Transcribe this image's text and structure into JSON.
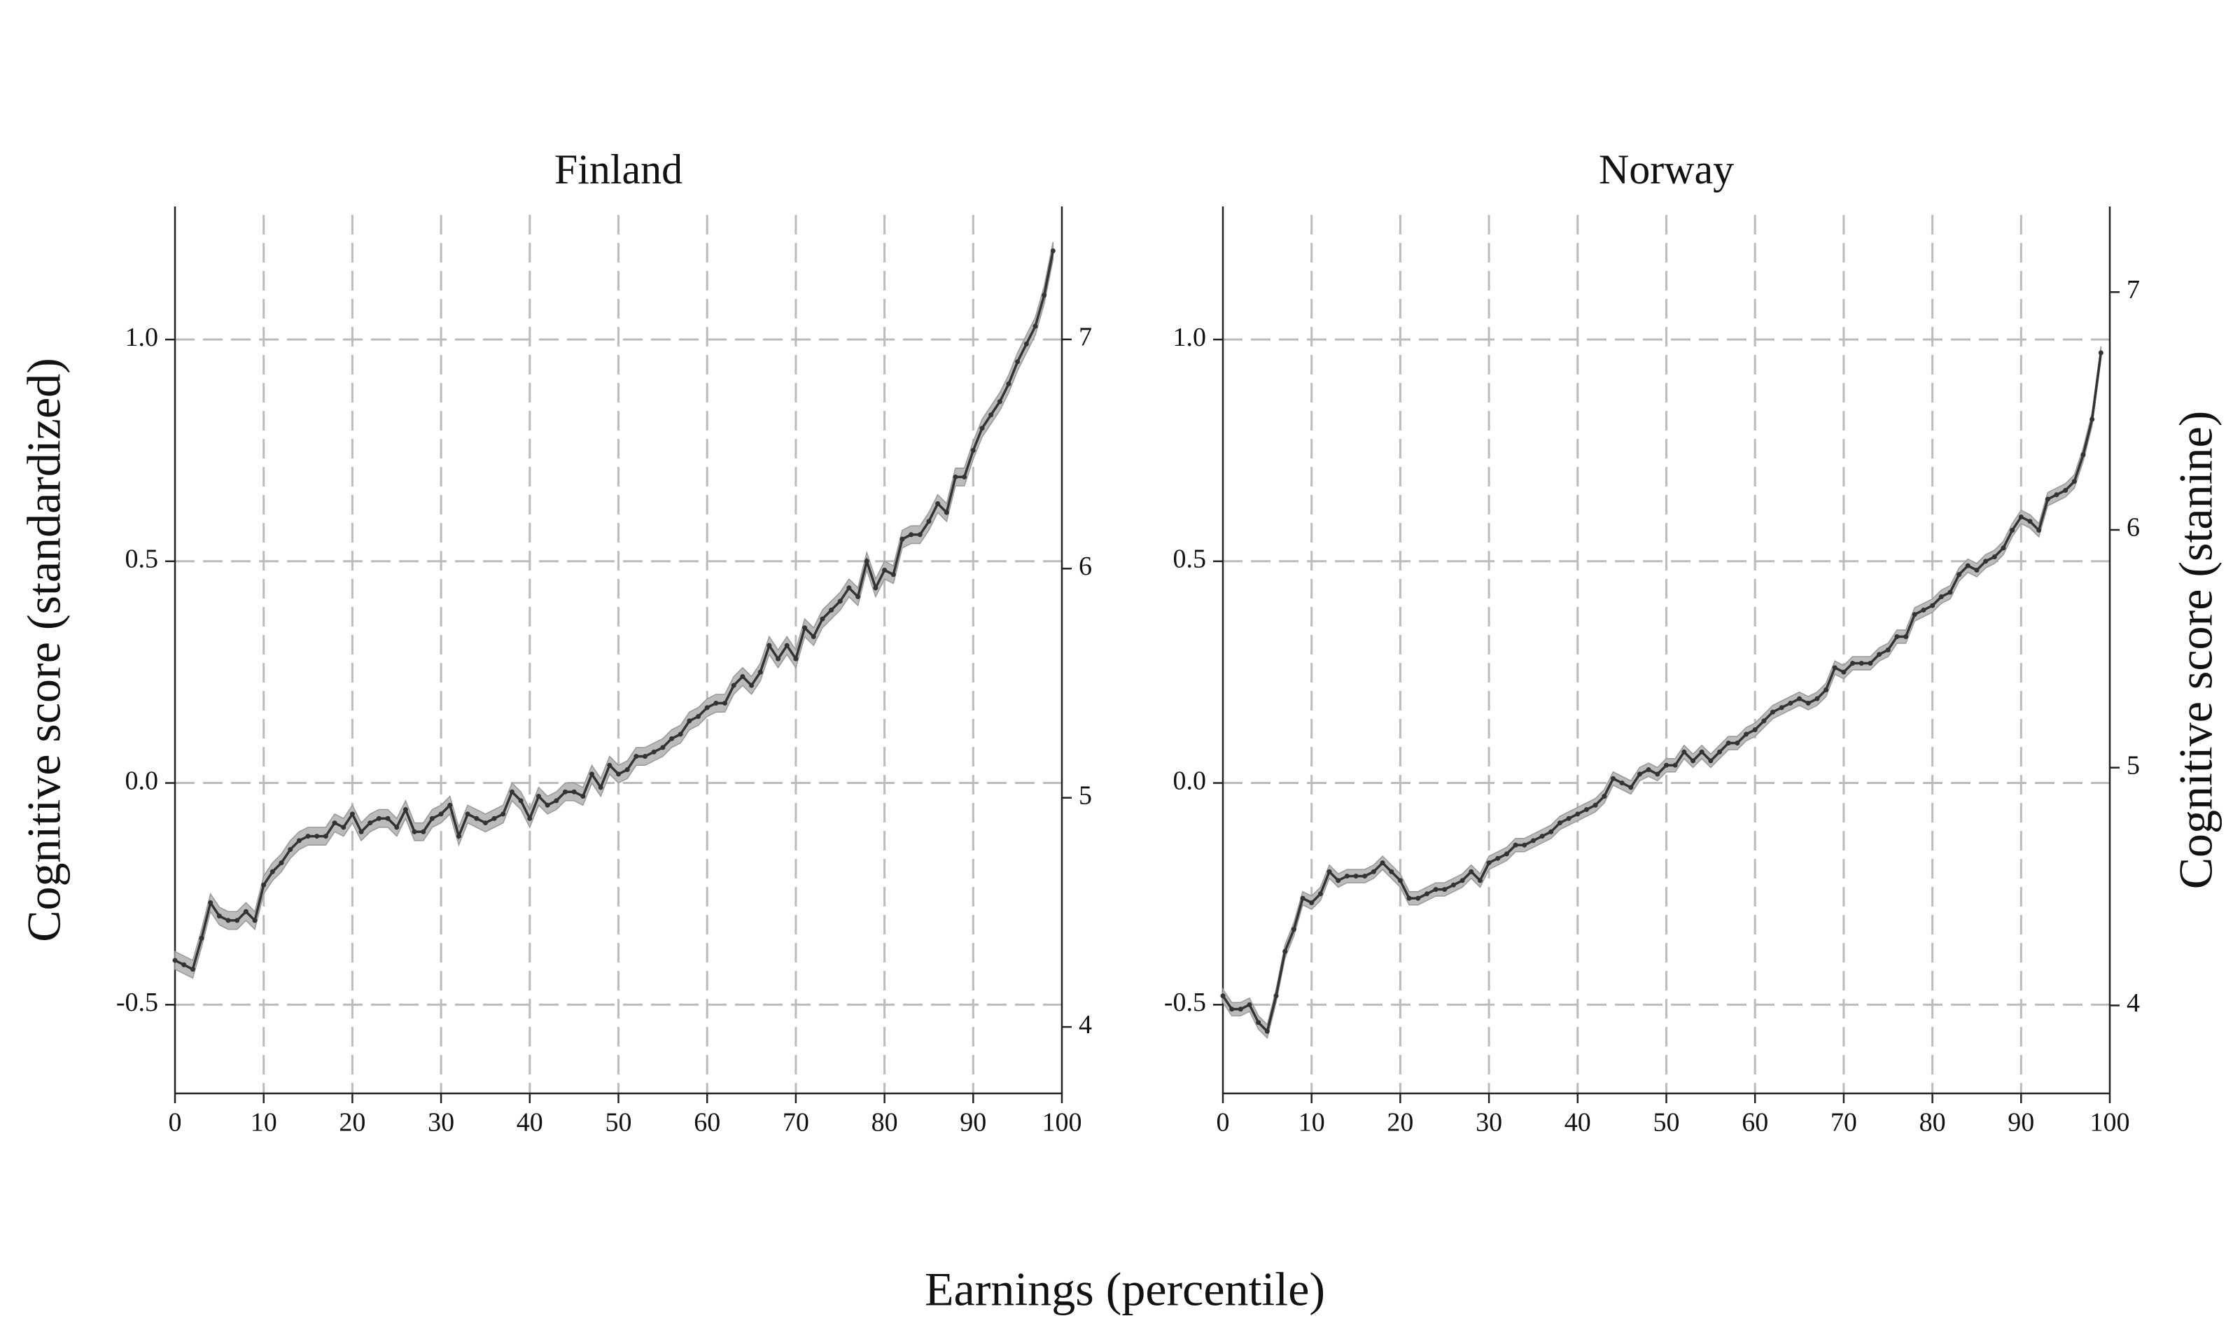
{
  "xlabel": "Earnings (percentile)",
  "chart_data": [
    {
      "type": "line",
      "title": "Finland",
      "ylabel": "Cognitive score (standardized)",
      "xlim": [
        0,
        100
      ],
      "xticks": [
        0,
        10,
        20,
        30,
        40,
        50,
        60,
        70,
        80,
        90,
        100
      ],
      "ylim": [
        -0.7,
        1.3
      ],
      "yticks": [
        {
          "value": -0.5,
          "label": "-0.5"
        },
        {
          "value": 0,
          "label": "0.0"
        },
        {
          "value": 0.5,
          "label": "0.5"
        },
        {
          "value": 1,
          "label": "1.0"
        }
      ],
      "y2lim": [
        3.71,
        7.58
      ],
      "y2ticks": [
        4,
        5,
        6,
        7
      ],
      "grid": true,
      "color": "#333333",
      "band_color": "#bbbbbb",
      "band": 0.02,
      "x": [
        0,
        1,
        2,
        3,
        4,
        5,
        6,
        7,
        8,
        9,
        10,
        11,
        12,
        13,
        14,
        15,
        16,
        17,
        18,
        19,
        20,
        21,
        22,
        23,
        24,
        25,
        26,
        27,
        28,
        29,
        30,
        31,
        32,
        33,
        34,
        35,
        36,
        37,
        38,
        39,
        40,
        41,
        42,
        43,
        44,
        45,
        46,
        47,
        48,
        49,
        50,
        51,
        52,
        53,
        54,
        55,
        56,
        57,
        58,
        59,
        60,
        61,
        62,
        63,
        64,
        65,
        66,
        67,
        68,
        69,
        70,
        71,
        72,
        73,
        74,
        75,
        76,
        77,
        78,
        79,
        80,
        81,
        82,
        83,
        84,
        85,
        86,
        87,
        88,
        89,
        90,
        91,
        92,
        93,
        94,
        95,
        96,
        97,
        98,
        99
      ],
      "values": [
        -0.4,
        -0.41,
        -0.42,
        -0.35,
        -0.27,
        -0.3,
        -0.31,
        -0.31,
        -0.29,
        -0.31,
        -0.23,
        -0.2,
        -0.18,
        -0.15,
        -0.13,
        -0.12,
        -0.12,
        -0.12,
        -0.09,
        -0.1,
        -0.07,
        -0.11,
        -0.09,
        -0.08,
        -0.08,
        -0.1,
        -0.06,
        -0.11,
        -0.11,
        -0.08,
        -0.07,
        -0.05,
        -0.12,
        -0.07,
        -0.08,
        -0.09,
        -0.08,
        -0.07,
        -0.02,
        -0.04,
        -0.08,
        -0.03,
        -0.05,
        -0.04,
        -0.02,
        -0.02,
        -0.03,
        0.02,
        -0.01,
        0.04,
        0.02,
        0.03,
        0.06,
        0.06,
        0.07,
        0.08,
        0.1,
        0.11,
        0.14,
        0.15,
        0.17,
        0.18,
        0.18,
        0.22,
        0.24,
        0.22,
        0.25,
        0.31,
        0.28,
        0.31,
        0.28,
        0.35,
        0.33,
        0.37,
        0.39,
        0.41,
        0.44,
        0.42,
        0.5,
        0.44,
        0.48,
        0.47,
        0.55,
        0.56,
        0.56,
        0.59,
        0.63,
        0.61,
        0.69,
        0.69,
        0.75,
        0.8,
        0.83,
        0.86,
        0.9,
        0.95,
        0.99,
        1.03,
        1.1,
        1.2
      ]
    },
    {
      "type": "line",
      "title": "Norway",
      "y2label": "Cognitive score (stanine)",
      "xlim": [
        0,
        100
      ],
      "xticks": [
        0,
        10,
        20,
        30,
        40,
        50,
        60,
        70,
        80,
        90,
        100
      ],
      "ylim": [
        -0.7,
        1.3
      ],
      "yticks": [
        {
          "value": -0.5,
          "label": "-0.5"
        },
        {
          "value": 0,
          "label": "0.0"
        },
        {
          "value": 0.5,
          "label": "0.5"
        },
        {
          "value": 1,
          "label": "1.0"
        }
      ],
      "y2lim": [
        3.63,
        7.36
      ],
      "y2ticks": [
        4,
        5,
        6,
        7
      ],
      "grid": true,
      "color": "#333333",
      "band_color": "#bbbbbb",
      "band": 0.015,
      "x": [
        0,
        1,
        2,
        3,
        4,
        5,
        6,
        7,
        8,
        9,
        10,
        11,
        12,
        13,
        14,
        15,
        16,
        17,
        18,
        19,
        20,
        21,
        22,
        23,
        24,
        25,
        26,
        27,
        28,
        29,
        30,
        31,
        32,
        33,
        34,
        35,
        36,
        37,
        38,
        39,
        40,
        41,
        42,
        43,
        44,
        45,
        46,
        47,
        48,
        49,
        50,
        51,
        52,
        53,
        54,
        55,
        56,
        57,
        58,
        59,
        60,
        61,
        62,
        63,
        64,
        65,
        66,
        67,
        68,
        69,
        70,
        71,
        72,
        73,
        74,
        75,
        76,
        77,
        78,
        79,
        80,
        81,
        82,
        83,
        84,
        85,
        86,
        87,
        88,
        89,
        90,
        91,
        92,
        93,
        94,
        95,
        96,
        97,
        98,
        99
      ],
      "values": [
        -0.48,
        -0.51,
        -0.51,
        -0.5,
        -0.54,
        -0.56,
        -0.48,
        -0.38,
        -0.33,
        -0.26,
        -0.27,
        -0.25,
        -0.2,
        -0.22,
        -0.21,
        -0.21,
        -0.21,
        -0.2,
        -0.18,
        -0.2,
        -0.22,
        -0.26,
        -0.26,
        -0.25,
        -0.24,
        -0.24,
        -0.23,
        -0.22,
        -0.2,
        -0.22,
        -0.18,
        -0.17,
        -0.16,
        -0.14,
        -0.14,
        -0.13,
        -0.12,
        -0.11,
        -0.09,
        -0.08,
        -0.07,
        -0.06,
        -0.05,
        -0.03,
        0.01,
        0.0,
        -0.01,
        0.02,
        0.03,
        0.02,
        0.04,
        0.04,
        0.07,
        0.05,
        0.07,
        0.05,
        0.07,
        0.09,
        0.09,
        0.11,
        0.12,
        0.14,
        0.16,
        0.17,
        0.18,
        0.19,
        0.18,
        0.19,
        0.21,
        0.26,
        0.25,
        0.27,
        0.27,
        0.27,
        0.29,
        0.3,
        0.33,
        0.33,
        0.38,
        0.39,
        0.4,
        0.42,
        0.43,
        0.47,
        0.49,
        0.48,
        0.5,
        0.51,
        0.53,
        0.57,
        0.6,
        0.59,
        0.57,
        0.64,
        0.65,
        0.66,
        0.68,
        0.74,
        0.82,
        0.97
      ]
    }
  ]
}
